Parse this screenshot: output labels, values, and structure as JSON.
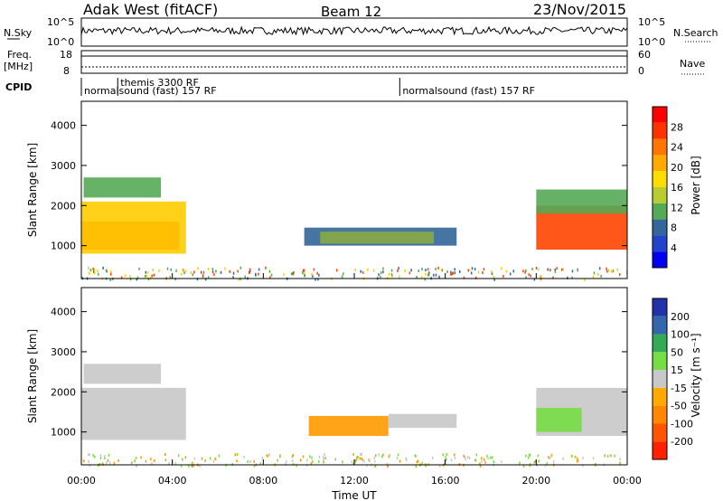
{
  "header": {
    "station": "Adak West (fitACF)",
    "beam": "Beam 12",
    "date": "23/Nov/2015"
  },
  "top_panels": {
    "nsky_label": "N.Sky",
    "nsky_ticks": [
      "10^5",
      "10^0"
    ],
    "nsearch_label": "N.Search",
    "nsearch_ticks": [
      "10^5",
      "10^0"
    ],
    "freq_label": "Freq.",
    "freq_unit": "[MHz]",
    "freq_ticks": [
      "18",
      "8"
    ],
    "nave_label": "Nave",
    "nave_ticks": [
      "60",
      "0"
    ],
    "cpid_label": "CPID",
    "cpid_segments": [
      {
        "start_h": 0,
        "end_h": 14,
        "label": "normalsound (fast) 157 RF"
      },
      {
        "start_h": 1.6,
        "end_h": 5,
        "label": "themis 3300 RF"
      },
      {
        "start_h": 14,
        "end_h": 24,
        "label": "normalsound (fast) 157 RF"
      }
    ]
  },
  "colorbars": {
    "power": {
      "label": "Power [dB]",
      "ticks": [
        "28",
        "24",
        "20",
        "16",
        "12",
        "8",
        "4"
      ],
      "colors": [
        "#ff0000",
        "#ff3300",
        "#ff7700",
        "#ffaa00",
        "#ffdd00",
        "#bbcc33",
        "#55aa55",
        "#336699",
        "#2244cc",
        "#0000ee"
      ]
    },
    "velocity": {
      "label": "Velocity [m s⁻¹]",
      "ticks": [
        "200",
        "100",
        "50",
        "15",
        "-15",
        "-50",
        "-100",
        "-200"
      ],
      "colors": [
        "#2233aa",
        "#3366aa",
        "#33aa55",
        "#77dd44",
        "#c8c8c8",
        "#ffaa00",
        "#ff8800",
        "#ff5500",
        "#ff2200"
      ]
    }
  },
  "chart_data": {
    "type": "heatmap",
    "xlabel": "Time UT",
    "ylabel": "Slant Range [km]",
    "x_ticks": [
      "00:00",
      "04:00",
      "08:00",
      "12:00",
      "16:00",
      "20:00",
      "00:00"
    ],
    "x_range_hours": [
      0,
      24
    ],
    "y_ticks": [
      "1000",
      "2000",
      "3000",
      "4000"
    ],
    "y_range_km": [
      180,
      4600
    ],
    "panels": [
      {
        "name": "Power",
        "regions": [
          {
            "t0": 0,
            "t1": 4.3,
            "r0": 900,
            "r1": 1600,
            "color": "#ff3300"
          },
          {
            "t0": 0,
            "t1": 4.6,
            "r0": 800,
            "r1": 2100,
            "color": "#ffcc00"
          },
          {
            "t0": 0.1,
            "t1": 3.5,
            "r0": 2200,
            "r1": 2700,
            "color": "#55aa55"
          },
          {
            "t0": 9.8,
            "t1": 16.5,
            "r0": 1000,
            "r1": 1450,
            "color": "#336699"
          },
          {
            "t0": 10.5,
            "t1": 15.5,
            "r0": 1050,
            "r1": 1350,
            "color": "#88aa44"
          },
          {
            "t0": 20,
            "t1": 24,
            "r0": 900,
            "r1": 2000,
            "color": "#ff4400"
          },
          {
            "t0": 20,
            "t1": 24,
            "r0": 1800,
            "r1": 2400,
            "color": "#55aa55"
          }
        ]
      },
      {
        "name": "Velocity",
        "regions": [
          {
            "t0": 0,
            "t1": 4.6,
            "r0": 800,
            "r1": 2100,
            "color": "#c8c8c8"
          },
          {
            "t0": 0.1,
            "t1": 3.5,
            "r0": 2200,
            "r1": 2700,
            "color": "#c8c8c8"
          },
          {
            "t0": 10,
            "t1": 13.5,
            "r0": 900,
            "r1": 1400,
            "color": "#ff9900"
          },
          {
            "t0": 13.5,
            "t1": 16.5,
            "r0": 1100,
            "r1": 1450,
            "color": "#c8c8c8"
          },
          {
            "t0": 20,
            "t1": 24,
            "r0": 900,
            "r1": 2100,
            "color": "#c8c8c8"
          },
          {
            "t0": 20,
            "t1": 22,
            "r0": 1000,
            "r1": 1600,
            "color": "#77dd44"
          }
        ]
      }
    ]
  }
}
